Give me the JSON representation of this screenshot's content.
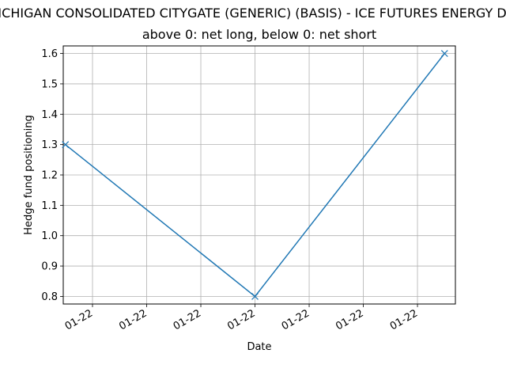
{
  "chart_data": {
    "type": "line",
    "title": "MICHIGAN CONSOLIDATED CITYGATE (GENERIC) (BASIS) - ICE FUTURES ENERGY DIV",
    "subtitle": "above 0: net long, below 0: net short",
    "xlabel": "Date",
    "ylabel": "Hedge fund positioning",
    "x_tick_labels": [
      "01-22",
      "01-22",
      "01-22",
      "01-22",
      "01-22",
      "01-22",
      "01-22"
    ],
    "x_tick_values": [
      1,
      2,
      3,
      4,
      5,
      6,
      7
    ],
    "xlim": [
      0.46,
      7.7
    ],
    "y_tick_labels": [
      "0.8",
      "0.9",
      "1.0",
      "1.1",
      "1.2",
      "1.3",
      "1.4",
      "1.5",
      "1.6"
    ],
    "y_tick_values": [
      0.8,
      0.9,
      1.0,
      1.1,
      1.2,
      1.3,
      1.4,
      1.5,
      1.6
    ],
    "ylim": [
      0.775,
      1.625
    ],
    "grid": true,
    "series": [
      {
        "x": [
          0.5,
          4.0,
          7.5
        ],
        "y": [
          1.3,
          0.8,
          1.6
        ],
        "color": "#1f77b4",
        "marker": "x"
      }
    ]
  }
}
